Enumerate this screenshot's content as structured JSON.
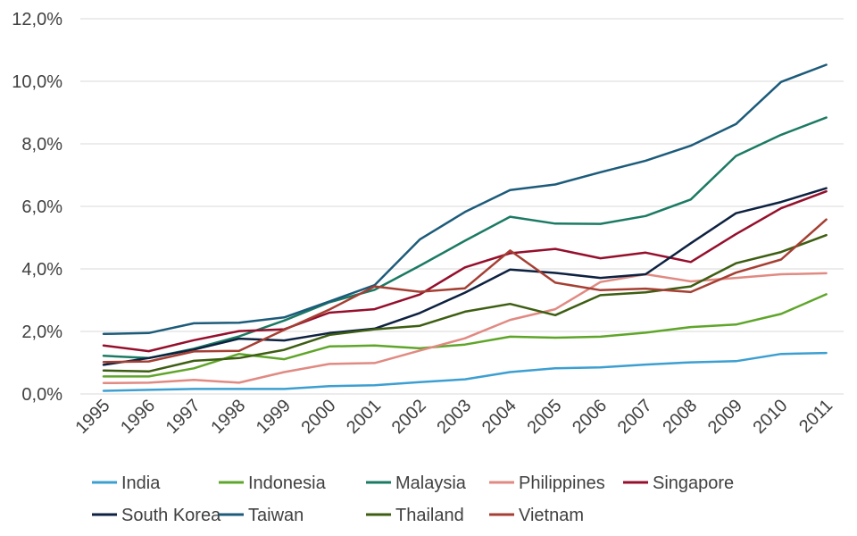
{
  "chart_data": {
    "type": "line",
    "title": "",
    "xlabel": "",
    "ylabel": "",
    "ylim": [
      0,
      12
    ],
    "y_tick_labels": [
      "0,0%",
      "2,0%",
      "4,0%",
      "6,0%",
      "8,0%",
      "10,0%",
      "12,0%"
    ],
    "y_tick_values": [
      0,
      2,
      4,
      6,
      8,
      10,
      12
    ],
    "grid": "horizontal",
    "legend_position": "bottom",
    "categories": [
      "1995",
      "1996",
      "1997",
      "1998",
      "1999",
      "2000",
      "2001",
      "2002",
      "2003",
      "2004",
      "2005",
      "2006",
      "2007",
      "2008",
      "2009",
      "2010",
      "2011"
    ],
    "series": [
      {
        "name": "India",
        "color": "#3c9fd1",
        "values": [
          0.1,
          0.13,
          0.16,
          0.16,
          0.16,
          0.25,
          0.28,
          0.38,
          0.47,
          0.7,
          0.82,
          0.85,
          0.94,
          1.01,
          1.05,
          1.28,
          1.31
        ]
      },
      {
        "name": "Indonesia",
        "color": "#5fa52a",
        "values": [
          0.56,
          0.56,
          0.82,
          1.28,
          1.11,
          1.52,
          1.55,
          1.46,
          1.58,
          1.83,
          1.8,
          1.83,
          1.96,
          2.14,
          2.22,
          2.56,
          3.19
        ]
      },
      {
        "name": "Malaysia",
        "color": "#1b7a63",
        "values": [
          1.22,
          1.15,
          1.45,
          1.84,
          2.35,
          2.93,
          3.33,
          4.1,
          4.9,
          5.67,
          5.45,
          5.44,
          5.69,
          6.22,
          7.61,
          8.29,
          8.84
        ]
      },
      {
        "name": "Philippines",
        "color": "#e08a82",
        "values": [
          0.35,
          0.36,
          0.45,
          0.36,
          0.7,
          0.96,
          0.99,
          1.39,
          1.78,
          2.37,
          2.71,
          3.58,
          3.83,
          3.6,
          3.71,
          3.83,
          3.86
        ]
      },
      {
        "name": "Singapore",
        "color": "#950f2c",
        "values": [
          1.55,
          1.37,
          1.72,
          2.01,
          2.07,
          2.6,
          2.71,
          3.18,
          4.05,
          4.5,
          4.64,
          4.34,
          4.52,
          4.22,
          5.11,
          5.94,
          6.48
        ]
      },
      {
        "name": "South Korea",
        "color": "#0d2140",
        "values": [
          0.93,
          1.15,
          1.42,
          1.77,
          1.71,
          1.95,
          2.09,
          2.59,
          3.24,
          3.98,
          3.87,
          3.71,
          3.83,
          4.82,
          5.78,
          6.14,
          6.58
        ]
      },
      {
        "name": "Taiwan",
        "color": "#1c5b7a",
        "values": [
          1.92,
          1.95,
          2.26,
          2.28,
          2.45,
          2.96,
          3.48,
          4.94,
          5.82,
          6.52,
          6.7,
          7.09,
          7.46,
          7.94,
          8.63,
          9.98,
          10.53
        ]
      },
      {
        "name": "Thailand",
        "color": "#3d5e12",
        "values": [
          0.75,
          0.72,
          1.06,
          1.15,
          1.41,
          1.89,
          2.07,
          2.18,
          2.63,
          2.88,
          2.52,
          3.16,
          3.25,
          3.44,
          4.18,
          4.54,
          5.08
        ]
      },
      {
        "name": "Vietnam",
        "color": "#a53f33",
        "values": [
          1.02,
          1.04,
          1.36,
          1.38,
          2.05,
          2.7,
          3.44,
          3.27,
          3.38,
          4.59,
          3.56,
          3.32,
          3.37,
          3.26,
          3.88,
          4.3,
          5.58
        ]
      }
    ]
  }
}
